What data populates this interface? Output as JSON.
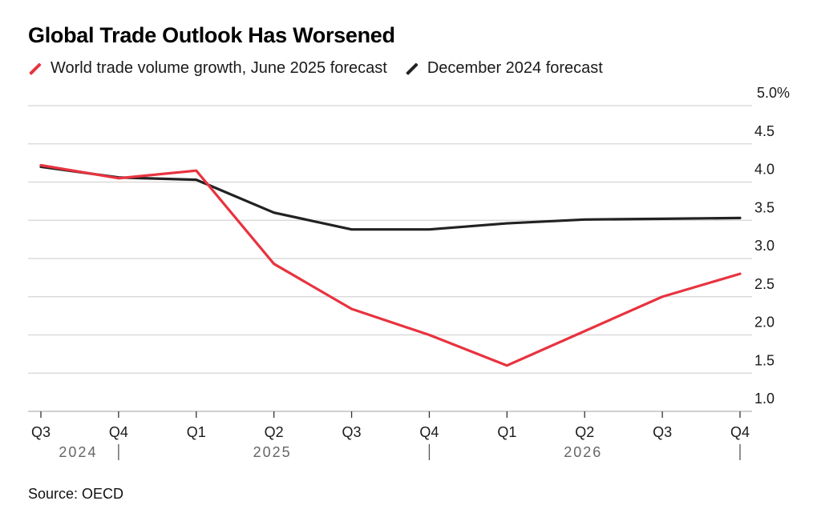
{
  "title": "Global Trade Outlook Has Worsened",
  "source": "Source: OECD",
  "legend": [
    {
      "label": "World trade volume growth, June 2025 forecast",
      "color": "#e8333f",
      "icon": "slash-line-icon"
    },
    {
      "label": "December 2024 forecast",
      "color": "#222222",
      "icon": "slash-line-icon"
    }
  ],
  "chart_data": {
    "type": "line",
    "title": "Global Trade Outlook Has Worsened",
    "xlabel": "",
    "ylabel": "",
    "x": [
      "Q3",
      "Q4",
      "Q1",
      "Q2",
      "Q3",
      "Q4",
      "Q1",
      "Q2",
      "Q3",
      "Q4"
    ],
    "x_periods": [
      "2024 Q3",
      "2024 Q4",
      "2025 Q1",
      "2025 Q2",
      "2025 Q3",
      "2025 Q4",
      "2026 Q1",
      "2026 Q2",
      "2026 Q3",
      "2026 Q4"
    ],
    "year_labels": [
      {
        "label": "2024",
        "center_index": 0.5
      },
      {
        "label": "2025",
        "center_index": 3
      },
      {
        "label": "2026",
        "center_index": 7
      }
    ],
    "year_separators_at_index": [
      1,
      5,
      9
    ],
    "ylim": [
      1.0,
      5.0
    ],
    "yticks": [
      1.0,
      1.5,
      2.0,
      2.5,
      3.0,
      3.5,
      4.0,
      4.5,
      5.0
    ],
    "ytick_labels": [
      "1.0",
      "1.5",
      "2.0",
      "2.5",
      "3.0",
      "3.5",
      "4.0",
      "4.5",
      "5.0%"
    ],
    "y_axis_side": "right",
    "grid": true,
    "legend_position": "top-left",
    "series": [
      {
        "name": "December 2024 forecast",
        "color": "#222222",
        "values": [
          4.2,
          4.06,
          4.03,
          3.6,
          3.38,
          3.38,
          3.46,
          3.51,
          3.52,
          3.53
        ]
      },
      {
        "name": "World trade volume growth, June 2025 forecast",
        "color": "#e8333f",
        "values": [
          4.22,
          4.05,
          4.15,
          2.93,
          2.34,
          2.0,
          1.6,
          2.05,
          2.5,
          2.8
        ]
      }
    ]
  }
}
